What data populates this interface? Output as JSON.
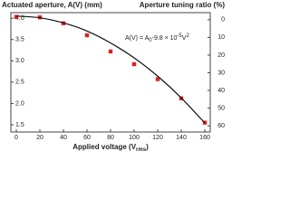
{
  "chart_data": {
    "type": "scatter",
    "ylabel": "Actuated aperture, A(V) (mm)",
    "y2label": "Aperture tuning ratio (%)",
    "xlabel": [
      "Applied voltage (V",
      "rms",
      ")"
    ],
    "annotation": [
      "A(V) = A",
      "0",
      "-9.8 × 10",
      "-5",
      "V",
      "2"
    ],
    "xlim": [
      -4.6,
      164.6
    ],
    "xticks": [
      0,
      20,
      40,
      60,
      80,
      100,
      120,
      140,
      160
    ],
    "ylim": [
      1.33,
      4.13
    ],
    "yticks": [
      {
        "value": 1.5,
        "label": "1.5"
      },
      {
        "value": 2,
        "label": "2.0"
      },
      {
        "value": 2.5,
        "label": "2.5"
      },
      {
        "value": 3,
        "label": "3.0"
      },
      {
        "value": 3.5,
        "label": "3.5"
      },
      {
        "value": 4,
        "label": "4.0"
      }
    ],
    "y2lim": [
      63.5,
      -4
    ],
    "y2ticks": [
      0,
      10,
      20,
      30,
      40,
      50,
      60
    ],
    "series": [
      {
        "mode": "markers",
        "color": "#e0201c",
        "x": [
          0,
          20,
          40,
          60,
          80,
          100,
          120,
          140,
          160
        ],
        "values": [
          4.03,
          4.02,
          3.88,
          3.6,
          3.22,
          2.92,
          2.57,
          2.12,
          1.55
        ]
      },
      {
        "mode": "line",
        "color": "#111111",
        "x": [
          0,
          20,
          40,
          60,
          80,
          100,
          120,
          140,
          160
        ],
        "values": [
          4.05,
          4.01,
          3.89,
          3.7,
          3.42,
          3.07,
          2.64,
          2.13,
          1.54
        ]
      }
    ]
  }
}
